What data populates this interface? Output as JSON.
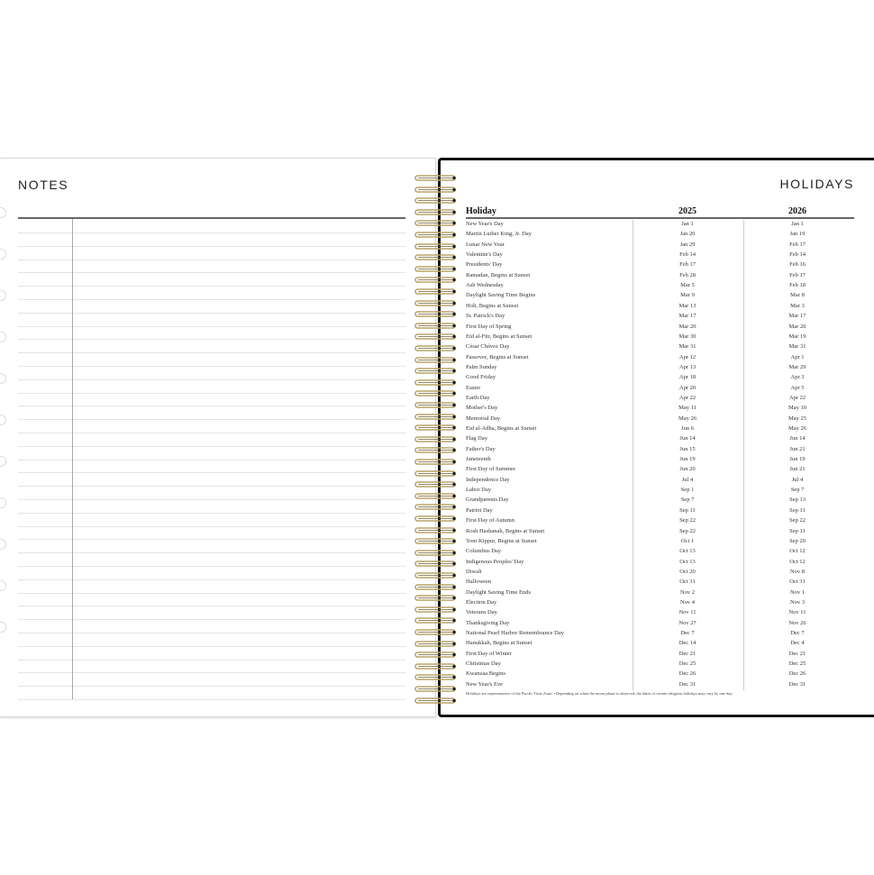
{
  "notes_page": {
    "title": "NOTES"
  },
  "holidays_page": {
    "title": "HOLIDAYS",
    "columns": [
      "Holiday",
      "2025",
      "2026"
    ],
    "rows": [
      [
        "New Year's Day",
        "Jan 1",
        "Jan 1"
      ],
      [
        "Martin Luther King, Jr. Day",
        "Jan 20",
        "Jan 19"
      ],
      [
        "Lunar New Year",
        "Jan 29",
        "Feb 17"
      ],
      [
        "Valentine's Day",
        "Feb 14",
        "Feb 14"
      ],
      [
        "Presidents' Day",
        "Feb 17",
        "Feb 16"
      ],
      [
        "Ramadan, Begins at Sunset",
        "Feb 28",
        "Feb 17"
      ],
      [
        "Ash Wednesday",
        "Mar 5",
        "Feb 18"
      ],
      [
        "Daylight Saving Time Begins",
        "Mar 9",
        "Mar 8"
      ],
      [
        "Holi, Begins at Sunset",
        "Mar 13",
        "Mar 3"
      ],
      [
        "St. Patrick's Day",
        "Mar 17",
        "Mar 17"
      ],
      [
        "First Day of Spring",
        "Mar 20",
        "Mar 20"
      ],
      [
        "Eid al-Fitr, Begins at Sunset",
        "Mar 30",
        "Mar 19"
      ],
      [
        "César Chávez Day",
        "Mar 31",
        "Mar 31"
      ],
      [
        "Passover, Begins at Sunset",
        "Apr 12",
        "Apr 1"
      ],
      [
        "Palm Sunday",
        "Apr 13",
        "Mar 29"
      ],
      [
        "Good Friday",
        "Apr 18",
        "Apr 3"
      ],
      [
        "Easter",
        "Apr 20",
        "Apr 5"
      ],
      [
        "Earth Day",
        "Apr 22",
        "Apr 22"
      ],
      [
        "Mother's Day",
        "May 11",
        "May 10"
      ],
      [
        "Memorial Day",
        "May 26",
        "May 25"
      ],
      [
        "Eid al-Adha, Begins at Sunset",
        "Jun 6",
        "May 26"
      ],
      [
        "Flag Day",
        "Jun 14",
        "Jun 14"
      ],
      [
        "Father's Day",
        "Jun 15",
        "Jun 21"
      ],
      [
        "Juneteenth",
        "Jun 19",
        "Jun 19"
      ],
      [
        "First Day of Summer",
        "Jun 20",
        "Jun 21"
      ],
      [
        "Independence Day",
        "Jul 4",
        "Jul 4"
      ],
      [
        "Labor Day",
        "Sep 1",
        "Sep 7"
      ],
      [
        "Grandparents Day",
        "Sep 7",
        "Sep 13"
      ],
      [
        "Patriot Day",
        "Sep 11",
        "Sep 11"
      ],
      [
        "First Day of Autumn",
        "Sep 22",
        "Sep 22"
      ],
      [
        "Rosh Hashanah, Begins at Sunset",
        "Sep 22",
        "Sep 11"
      ],
      [
        "Yom Kippur, Begins at Sunset",
        "Oct 1",
        "Sep 20"
      ],
      [
        "Columbus Day",
        "Oct 13",
        "Oct 12"
      ],
      [
        "Indigenous Peoples' Day",
        "Oct 13",
        "Oct 12"
      ],
      [
        "Diwali",
        "Oct 20",
        "Nov 8"
      ],
      [
        "Halloween",
        "Oct 31",
        "Oct 31"
      ],
      [
        "Daylight Saving Time Ends",
        "Nov 2",
        "Nov 1"
      ],
      [
        "Election Day",
        "Nov 4",
        "Nov 3"
      ],
      [
        "Veterans Day",
        "Nov 11",
        "Nov 11"
      ],
      [
        "Thanksgiving Day",
        "Nov 27",
        "Nov 26"
      ],
      [
        "National Pearl Harbor Remembrance Day",
        "Dec 7",
        "Dec 7"
      ],
      [
        "Hanukkah, Begins at Sunset",
        "Dec 14",
        "Dec 4"
      ],
      [
        "First Day of Winter",
        "Dec 21",
        "Dec 21"
      ],
      [
        "Christmas Day",
        "Dec 25",
        "Dec 25"
      ],
      [
        "Kwanzaa Begins",
        "Dec 26",
        "Dec 26"
      ],
      [
        "New Year's Eve",
        "Dec 31",
        "Dec 31"
      ]
    ],
    "footnote": "Holidays are representative of the Pacific Time Zone.  •  Depending on when the moon phase is observed, the dates of certain religious holidays may vary by one day."
  },
  "colors": {
    "coil": "#b8a468",
    "border_right": "#111111",
    "rule": "#e4e4e4"
  }
}
